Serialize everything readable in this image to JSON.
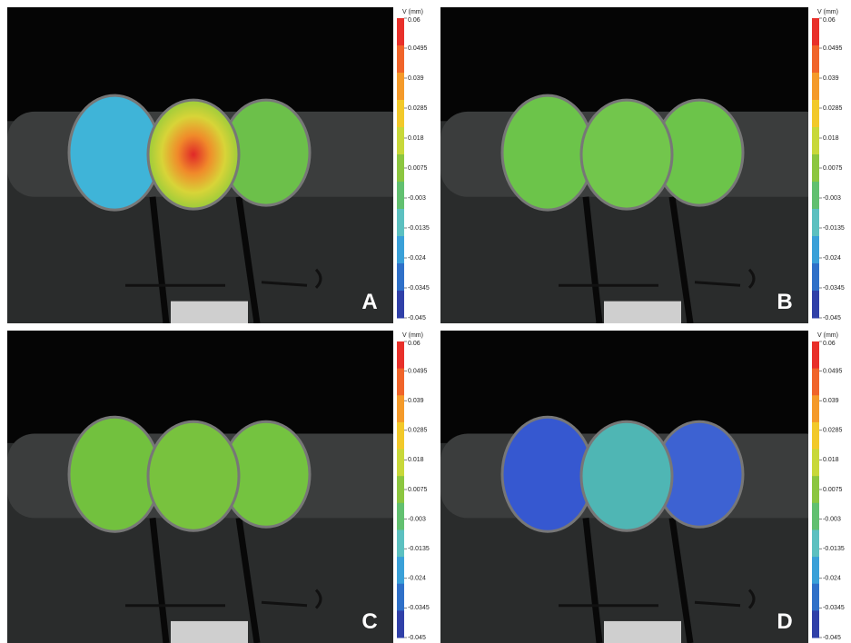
{
  "panels": [
    {
      "label": "A"
    },
    {
      "label": "B"
    },
    {
      "label": "C"
    },
    {
      "label": "D"
    }
  ],
  "colorbar": {
    "title": "V (mm)",
    "ticks": [
      0.06,
      0.0495,
      0.039,
      0.0285,
      0.018,
      0.0075,
      -0.003,
      -0.0135,
      -0.024,
      -0.0345,
      -0.045
    ]
  }
}
